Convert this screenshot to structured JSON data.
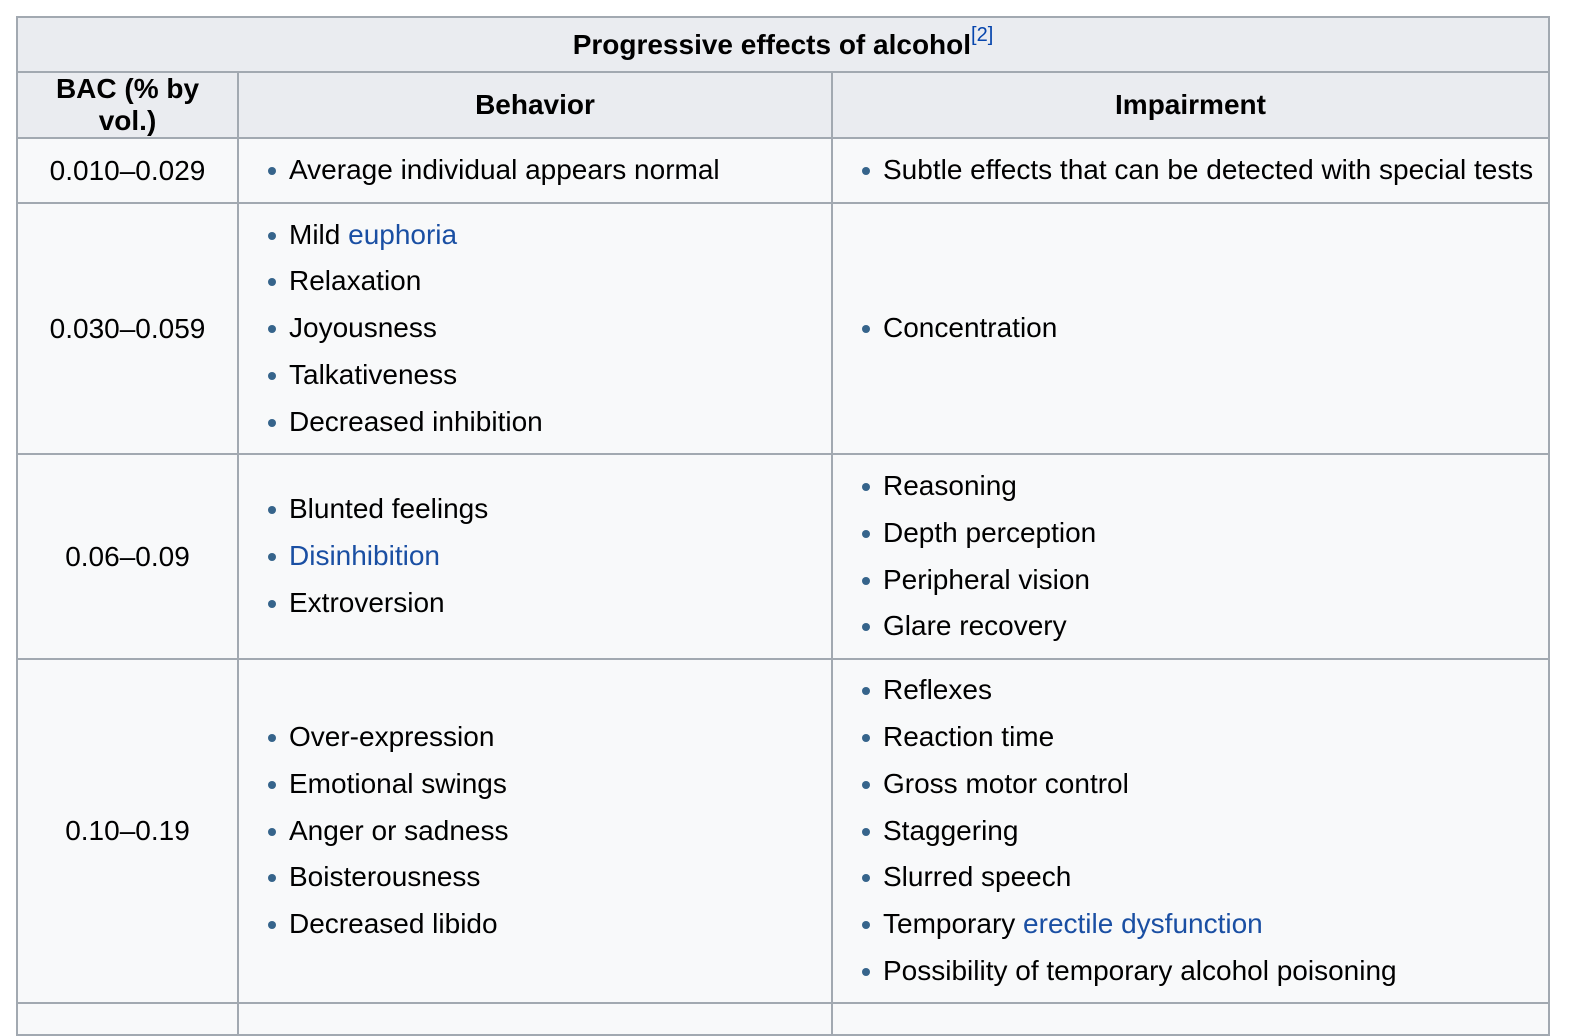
{
  "table": {
    "title": "Progressive effects of alcohol",
    "title_ref": "[2]",
    "headers": {
      "bac": "BAC (% by vol.)",
      "behavior": "Behavior",
      "impairment": "Impairment"
    },
    "rows": [
      {
        "bac": "0.010–0.029",
        "behavior": [
          {
            "text": "Average individual appears normal"
          }
        ],
        "impairment": [
          {
            "text": "Subtle effects that can be detected with special tests"
          }
        ]
      },
      {
        "bac": "0.030–0.059",
        "behavior": [
          {
            "text": "Mild ",
            "link": "euphoria"
          },
          {
            "text": "Relaxation"
          },
          {
            "text": "Joyousness"
          },
          {
            "text": "Talkativeness"
          },
          {
            "text": "Decreased inhibition"
          }
        ],
        "impairment": [
          {
            "text": "Concentration"
          }
        ]
      },
      {
        "bac": "0.06–0.09",
        "behavior": [
          {
            "text": "Blunted feelings"
          },
          {
            "text": "",
            "link": "Disinhibition"
          },
          {
            "text": "Extroversion"
          }
        ],
        "impairment": [
          {
            "text": "Reasoning"
          },
          {
            "text": "Depth perception"
          },
          {
            "text": "Peripheral vision"
          },
          {
            "text": "Glare recovery"
          }
        ]
      },
      {
        "bac": "0.10–0.19",
        "behavior": [
          {
            "text": "Over-expression"
          },
          {
            "text": "Emotional swings"
          },
          {
            "text": "Anger or sadness"
          },
          {
            "text": "Boisterousness"
          },
          {
            "text": "Decreased libido"
          }
        ],
        "impairment": [
          {
            "text": "Reflexes"
          },
          {
            "text": "Reaction time"
          },
          {
            "text": "Gross motor control"
          },
          {
            "text": "Staggering"
          },
          {
            "text": "Slurred speech"
          },
          {
            "text": "Temporary ",
            "link": "erectile dysfunction"
          },
          {
            "text": "Possibility of temporary alcohol poisoning"
          }
        ]
      }
    ],
    "colors": {
      "header_bg": "#eaecf0",
      "cell_bg": "#f8f9fa",
      "border": "#a2a9b1",
      "link": "#1a4fa3",
      "bullet": "#36648b"
    }
  }
}
